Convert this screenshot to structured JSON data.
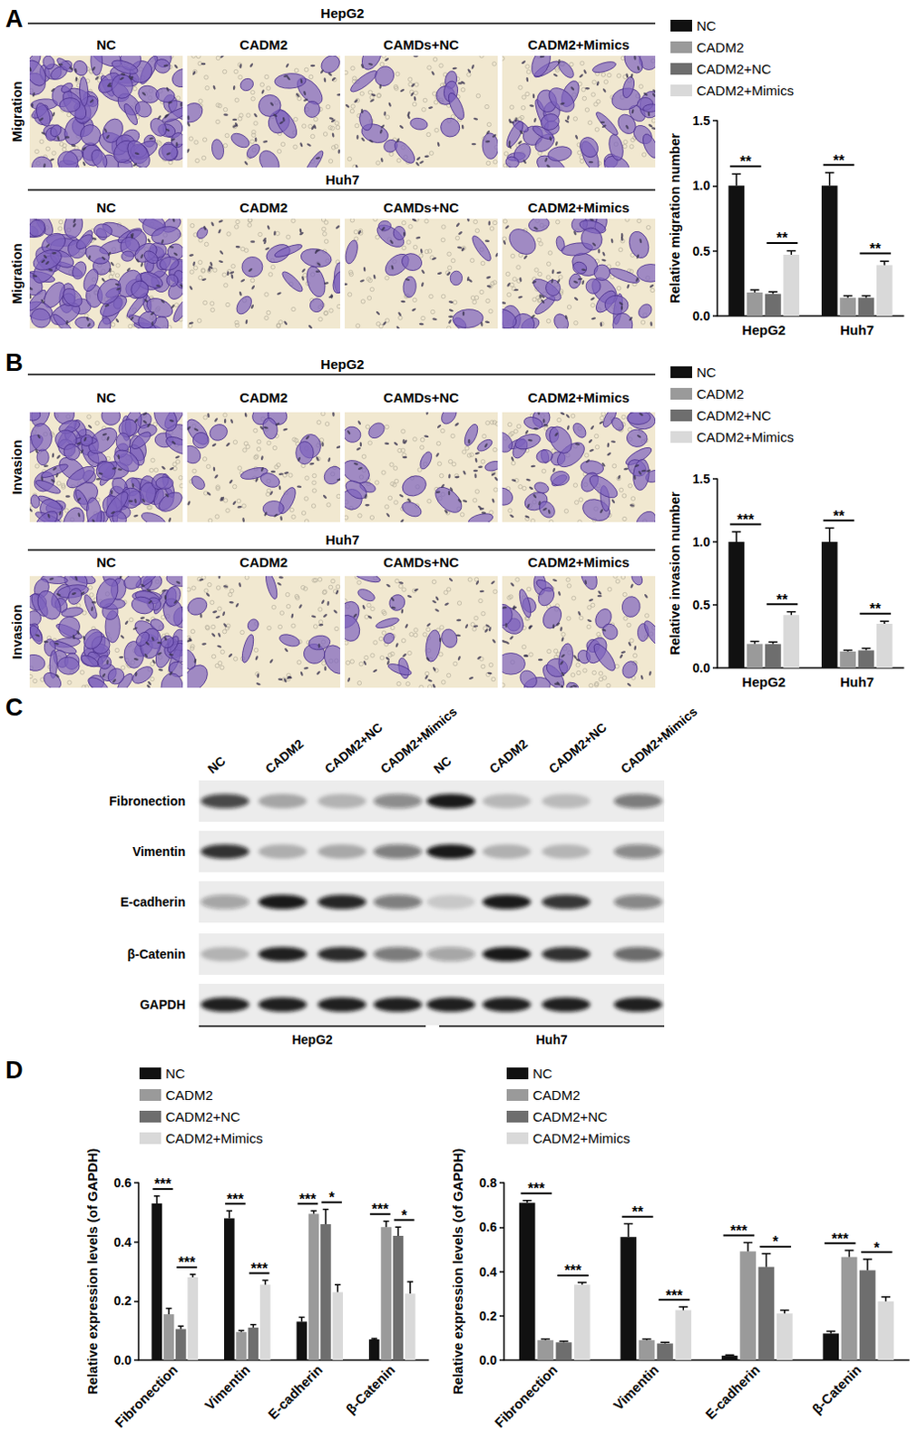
{
  "chart_data": [
    {
      "type": "bar",
      "categories": [
        "HepG2",
        "Huh7"
      ],
      "ylabel": "Relative migration number",
      "ylim": [
        0,
        1.5
      ],
      "yticks": [
        {
          "value": 0,
          "label": "0.0"
        },
        0.5,
        {
          "value": 1,
          "label": "1.0"
        },
        1.5
      ],
      "grid": false,
      "legend": "top-left",
      "series": [
        {
          "name": "NC",
          "color": "#111111",
          "values": [
            1.0,
            1.0
          ],
          "errors": [
            0.09,
            0.1
          ]
        },
        {
          "name": "CADM2",
          "color": "#9a9a9a",
          "values": [
            0.18,
            0.14
          ],
          "errors": [
            0.02,
            0.015
          ]
        },
        {
          "name": "CADM2+NC",
          "color": "#6e6e6e",
          "values": [
            0.17,
            0.14
          ],
          "errors": [
            0.015,
            0.015
          ]
        },
        {
          "name": "CADM2+Mimics",
          "color": "#d9d9d9",
          "values": [
            0.47,
            0.39
          ],
          "errors": [
            0.03,
            0.03
          ]
        }
      ],
      "annotations": [
        {
          "category": "HepG2",
          "from": "NC",
          "to": "CADM2",
          "label": "**"
        },
        {
          "category": "HepG2",
          "from": "CADM2+NC",
          "to": "CADM2+Mimics",
          "label": "**"
        },
        {
          "category": "Huh7",
          "from": "NC",
          "to": "CADM2",
          "label": "**"
        },
        {
          "category": "Huh7",
          "from": "CADM2+NC",
          "to": "CADM2+Mimics",
          "label": "**"
        }
      ]
    },
    {
      "type": "bar",
      "categories": [
        "HepG2",
        "Huh7"
      ],
      "ylabel": "Relative invasion number",
      "ylim": [
        0,
        1.5
      ],
      "yticks": [
        {
          "value": 0,
          "label": "0.0"
        },
        0.5,
        {
          "value": 1,
          "label": "1.0"
        },
        1.5
      ],
      "grid": false,
      "legend": "top-left",
      "series": [
        {
          "name": "NC",
          "color": "#111111",
          "values": [
            1.0,
            1.0
          ],
          "errors": [
            0.08,
            0.11
          ]
        },
        {
          "name": "CADM2",
          "color": "#9a9a9a",
          "values": [
            0.19,
            0.13
          ],
          "errors": [
            0.02,
            0.01
          ]
        },
        {
          "name": "CADM2+NC",
          "color": "#6e6e6e",
          "values": [
            0.19,
            0.14
          ],
          "errors": [
            0.015,
            0.015
          ]
        },
        {
          "name": "CADM2+Mimics",
          "color": "#d9d9d9",
          "values": [
            0.42,
            0.35
          ],
          "errors": [
            0.025,
            0.02
          ]
        }
      ],
      "annotations": [
        {
          "category": "HepG2",
          "from": "NC",
          "to": "CADM2",
          "label": "***"
        },
        {
          "category": "HepG2",
          "from": "CADM2+NC",
          "to": "CADM2+Mimics",
          "label": "**"
        },
        {
          "category": "Huh7",
          "from": "NC",
          "to": "CADM2",
          "label": "**"
        },
        {
          "category": "Huh7",
          "from": "CADM2+NC",
          "to": "CADM2+Mimics",
          "label": "**"
        }
      ]
    },
    {
      "type": "bar",
      "categories": [
        "Fibronection",
        "Vimentin",
        "E-cadherin",
        "β-Catenin"
      ],
      "ylabel": "Relative expression levels (of GAPDH)",
      "ylim": [
        0,
        0.6
      ],
      "yticks": [
        {
          "value": 0,
          "label": "0.0"
        },
        0.2,
        0.4,
        0.6
      ],
      "grid": false,
      "legend": "top-left",
      "series": [
        {
          "name": "NC",
          "color": "#111111",
          "values": [
            0.53,
            0.48,
            0.13,
            0.07
          ],
          "errors": [
            0.025,
            0.025,
            0.015,
            0.003
          ]
        },
        {
          "name": "CADM2",
          "color": "#9a9a9a",
          "values": [
            0.155,
            0.095,
            0.495,
            0.45
          ],
          "errors": [
            0.02,
            0.005,
            0.01,
            0.02
          ]
        },
        {
          "name": "CADM2+NC",
          "color": "#6e6e6e",
          "values": [
            0.105,
            0.11,
            0.46,
            0.42
          ],
          "errors": [
            0.01,
            0.01,
            0.05,
            0.03
          ]
        },
        {
          "name": "CADM2+Mimics",
          "color": "#d9d9d9",
          "values": [
            0.28,
            0.255,
            0.23,
            0.225
          ],
          "errors": [
            0.01,
            0.015,
            0.025,
            0.04
          ]
        }
      ],
      "annotations": [
        {
          "category": "Fibronection",
          "from": "NC",
          "to": "CADM2",
          "label": "***"
        },
        {
          "category": "Fibronection",
          "from": "CADM2+NC",
          "to": "CADM2+Mimics",
          "label": "***"
        },
        {
          "category": "Vimentin",
          "from": "NC",
          "to": "CADM2",
          "label": "***"
        },
        {
          "category": "Vimentin",
          "from": "CADM2+NC",
          "to": "CADM2+Mimics",
          "label": "***"
        },
        {
          "category": "E-cadherin",
          "from": "NC",
          "to": "CADM2",
          "label": "***"
        },
        {
          "category": "E-cadherin",
          "from": "CADM2+NC",
          "to": "CADM2+Mimics",
          "label": "*"
        },
        {
          "category": "β-Catenin",
          "from": "NC",
          "to": "CADM2",
          "label": "***"
        },
        {
          "category": "β-Catenin",
          "from": "CADM2+NC",
          "to": "CADM2+Mimics",
          "label": "*"
        }
      ]
    },
    {
      "type": "bar",
      "categories": [
        "Fibronection",
        "Vimentin",
        "E-cadherin",
        "β-Catenin"
      ],
      "ylabel": "Relative expression levels (of GAPDH)",
      "ylim": [
        0,
        0.8
      ],
      "yticks": [
        {
          "value": 0,
          "label": "0.0"
        },
        0.2,
        0.4,
        0.6,
        0.8
      ],
      "grid": false,
      "legend": "top-left",
      "series": [
        {
          "name": "NC",
          "color": "#111111",
          "values": [
            0.71,
            0.555,
            0.02,
            0.12
          ],
          "errors": [
            0.01,
            0.06,
            0.003,
            0.01
          ]
        },
        {
          "name": "CADM2",
          "color": "#9a9a9a",
          "values": [
            0.09,
            0.09,
            0.49,
            0.465
          ],
          "errors": [
            0.005,
            0.005,
            0.04,
            0.03
          ]
        },
        {
          "name": "CADM2+NC",
          "color": "#6e6e6e",
          "values": [
            0.08,
            0.075,
            0.42,
            0.405
          ],
          "errors": [
            0.005,
            0.005,
            0.06,
            0.05
          ]
        },
        {
          "name": "CADM2+Mimics",
          "color": "#d9d9d9",
          "values": [
            0.34,
            0.225,
            0.21,
            0.265
          ],
          "errors": [
            0.01,
            0.015,
            0.015,
            0.02
          ]
        }
      ],
      "annotations": [
        {
          "category": "Fibronection",
          "from": "NC",
          "to": "CADM2",
          "label": "***"
        },
        {
          "category": "Fibronection",
          "from": "CADM2+NC",
          "to": "CADM2+Mimics",
          "label": "***"
        },
        {
          "category": "Vimentin",
          "from": "NC",
          "to": "CADM2",
          "label": "**"
        },
        {
          "category": "Vimentin",
          "from": "CADM2+NC",
          "to": "CADM2+Mimics",
          "label": "***"
        },
        {
          "category": "E-cadherin",
          "from": "NC",
          "to": "CADM2",
          "label": "***"
        },
        {
          "category": "E-cadherin",
          "from": "CADM2+NC",
          "to": "CADM2+Mimics",
          "label": "*"
        },
        {
          "category": "β-Catenin",
          "from": "NC",
          "to": "CADM2",
          "label": "***"
        },
        {
          "category": "β-Catenin",
          "from": "CADM2+NC",
          "to": "CADM2+Mimics",
          "label": "*"
        }
      ]
    }
  ],
  "figure": {
    "panel_labels": [
      "A",
      "B",
      "C",
      "D"
    ],
    "micrographs": [
      {
        "panel": "A",
        "row_label": "Migration",
        "rows": [
          {
            "title": "HepG2",
            "columns": [
              "NC",
              "CADM2",
              "CAMDs+NC",
              "CADM2+Mimics"
            ]
          },
          {
            "title": "Huh7",
            "columns": [
              "NC",
              "CADM2",
              "CAMDs+NC",
              "CADM2+Mimics"
            ]
          }
        ]
      },
      {
        "panel": "B",
        "row_label": "Invasion",
        "rows": [
          {
            "title": "HepG2",
            "columns": [
              "NC",
              "CADM2",
              "CAMDs+NC",
              "CADM2+Mimics"
            ]
          },
          {
            "title": "Huh7",
            "columns": [
              "NC",
              "CADM2",
              "CAMDs+NC",
              "CADM2+Mimics"
            ]
          }
        ]
      }
    ],
    "blot": {
      "lanes": [
        "NC",
        "CADM2",
        "CADM2+NC",
        "CADM2+Mimics",
        "NC",
        "CADM2",
        "CADM2+NC",
        "CADM2+Mimics"
      ],
      "proteins": [
        "Fibronection",
        "Vimentin",
        "E-cadherin",
        "β-Catenin",
        "GAPDH"
      ],
      "groups": [
        "HepG2",
        "Huh7"
      ]
    }
  }
}
